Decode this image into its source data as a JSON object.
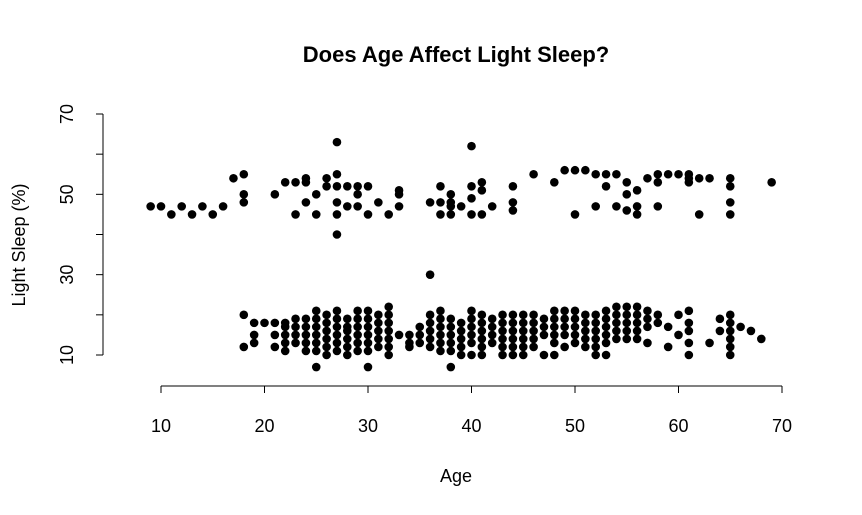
{
  "chart_data": {
    "type": "scatter",
    "title": "Does Age Affect Light Sleep?",
    "xlabel": "Age",
    "ylabel": "Light Sleep (%)",
    "xlim": [
      10,
      70
    ],
    "ylim": [
      10,
      70
    ],
    "xticks": [
      10,
      20,
      30,
      40,
      50,
      60,
      70
    ],
    "yticks_labeled": [
      10,
      30,
      50,
      70
    ],
    "yticks_all": [
      10,
      20,
      30,
      40,
      50,
      60,
      70
    ],
    "grid": false,
    "point_color": "#000000",
    "points": [
      [
        9,
        47
      ],
      [
        10,
        47
      ],
      [
        11,
        45
      ],
      [
        12,
        47
      ],
      [
        13,
        45
      ],
      [
        14,
        47
      ],
      [
        15,
        45
      ],
      [
        16,
        47
      ],
      [
        17,
        54
      ],
      [
        18,
        55
      ],
      [
        18,
        50
      ],
      [
        18,
        48
      ],
      [
        21,
        50
      ],
      [
        22,
        53
      ],
      [
        23,
        53
      ],
      [
        23,
        45
      ],
      [
        24,
        48
      ],
      [
        24,
        53
      ],
      [
        24,
        54
      ],
      [
        25,
        45
      ],
      [
        25,
        50
      ],
      [
        26,
        52
      ],
      [
        26,
        54
      ],
      [
        27,
        63
      ],
      [
        27,
        55
      ],
      [
        27,
        52
      ],
      [
        27,
        48
      ],
      [
        27,
        45
      ],
      [
        27,
        40
      ],
      [
        28,
        47
      ],
      [
        28,
        52
      ],
      [
        29,
        52
      ],
      [
        29,
        50
      ],
      [
        29,
        47
      ],
      [
        30,
        52
      ],
      [
        30,
        45
      ],
      [
        31,
        48
      ],
      [
        32,
        45
      ],
      [
        33,
        51
      ],
      [
        33,
        50
      ],
      [
        33,
        47
      ],
      [
        36,
        48
      ],
      [
        37,
        52
      ],
      [
        37,
        48
      ],
      [
        37,
        45
      ],
      [
        38,
        50
      ],
      [
        38,
        48
      ],
      [
        38,
        47
      ],
      [
        38,
        45
      ],
      [
        39,
        47
      ],
      [
        40,
        62
      ],
      [
        40,
        52
      ],
      [
        40,
        49
      ],
      [
        40,
        45
      ],
      [
        41,
        53
      ],
      [
        41,
        51
      ],
      [
        41,
        45
      ],
      [
        42,
        47
      ],
      [
        44,
        52
      ],
      [
        44,
        48
      ],
      [
        44,
        46
      ],
      [
        46,
        55
      ],
      [
        48,
        53
      ],
      [
        49,
        56
      ],
      [
        50,
        56
      ],
      [
        50,
        45
      ],
      [
        51,
        56
      ],
      [
        52,
        55
      ],
      [
        52,
        47
      ],
      [
        53,
        55
      ],
      [
        53,
        52
      ],
      [
        54,
        55
      ],
      [
        54,
        47
      ],
      [
        55,
        53
      ],
      [
        55,
        50
      ],
      [
        55,
        46
      ],
      [
        56,
        51
      ],
      [
        56,
        47
      ],
      [
        56,
        45
      ],
      [
        57,
        54
      ],
      [
        58,
        55
      ],
      [
        58,
        53
      ],
      [
        58,
        47
      ],
      [
        59,
        55
      ],
      [
        60,
        55
      ],
      [
        61,
        55
      ],
      [
        61,
        54
      ],
      [
        61,
        53
      ],
      [
        62,
        54
      ],
      [
        62,
        45
      ],
      [
        63,
        54
      ],
      [
        65,
        54
      ],
      [
        65,
        52
      ],
      [
        65,
        48
      ],
      [
        65,
        45
      ],
      [
        69,
        53
      ],
      [
        18,
        20
      ],
      [
        18,
        12
      ],
      [
        19,
        18
      ],
      [
        19,
        15
      ],
      [
        19,
        13
      ],
      [
        20,
        18
      ],
      [
        21,
        18
      ],
      [
        21,
        15
      ],
      [
        21,
        12
      ],
      [
        22,
        18
      ],
      [
        22,
        17
      ],
      [
        22,
        15
      ],
      [
        22,
        13
      ],
      [
        22,
        11
      ],
      [
        23,
        19
      ],
      [
        23,
        17
      ],
      [
        23,
        15
      ],
      [
        23,
        13
      ],
      [
        24,
        19
      ],
      [
        24,
        17
      ],
      [
        24,
        15
      ],
      [
        24,
        13
      ],
      [
        24,
        11
      ],
      [
        25,
        21
      ],
      [
        25,
        19
      ],
      [
        25,
        17
      ],
      [
        25,
        15
      ],
      [
        25,
        13
      ],
      [
        25,
        11
      ],
      [
        25,
        7
      ],
      [
        26,
        20
      ],
      [
        26,
        18
      ],
      [
        26,
        16
      ],
      [
        26,
        14
      ],
      [
        26,
        12
      ],
      [
        26,
        10
      ],
      [
        27,
        21
      ],
      [
        27,
        19
      ],
      [
        27,
        17
      ],
      [
        27,
        15
      ],
      [
        27,
        13
      ],
      [
        27,
        11
      ],
      [
        28,
        19
      ],
      [
        28,
        17
      ],
      [
        28,
        16
      ],
      [
        28,
        14
      ],
      [
        28,
        12
      ],
      [
        28,
        10
      ],
      [
        29,
        21
      ],
      [
        29,
        19
      ],
      [
        29,
        17
      ],
      [
        29,
        15
      ],
      [
        29,
        13
      ],
      [
        29,
        11
      ],
      [
        30,
        21
      ],
      [
        30,
        19
      ],
      [
        30,
        17
      ],
      [
        30,
        15
      ],
      [
        30,
        13
      ],
      [
        30,
        11
      ],
      [
        30,
        7
      ],
      [
        31,
        20
      ],
      [
        31,
        18
      ],
      [
        31,
        16
      ],
      [
        31,
        14
      ],
      [
        31,
        12
      ],
      [
        32,
        22
      ],
      [
        32,
        20
      ],
      [
        32,
        18
      ],
      [
        32,
        16
      ],
      [
        32,
        14
      ],
      [
        32,
        12
      ],
      [
        32,
        10
      ],
      [
        33,
        15
      ],
      [
        34,
        15
      ],
      [
        34,
        13
      ],
      [
        34,
        12
      ],
      [
        35,
        17
      ],
      [
        35,
        15
      ],
      [
        35,
        13
      ],
      [
        36,
        30
      ],
      [
        36,
        20
      ],
      [
        36,
        18
      ],
      [
        36,
        16
      ],
      [
        36,
        14
      ],
      [
        36,
        12
      ],
      [
        37,
        21
      ],
      [
        37,
        19
      ],
      [
        37,
        17
      ],
      [
        37,
        15
      ],
      [
        37,
        13
      ],
      [
        37,
        11
      ],
      [
        38,
        19
      ],
      [
        38,
        17
      ],
      [
        38,
        15
      ],
      [
        38,
        13
      ],
      [
        38,
        11
      ],
      [
        38,
        7
      ],
      [
        39,
        18
      ],
      [
        39,
        16
      ],
      [
        39,
        14
      ],
      [
        39,
        12
      ],
      [
        39,
        10
      ],
      [
        40,
        21
      ],
      [
        40,
        19
      ],
      [
        40,
        17
      ],
      [
        40,
        15
      ],
      [
        40,
        13
      ],
      [
        40,
        10
      ],
      [
        41,
        20
      ],
      [
        41,
        18
      ],
      [
        41,
        16
      ],
      [
        41,
        14
      ],
      [
        41,
        12
      ],
      [
        41,
        10
      ],
      [
        42,
        19
      ],
      [
        42,
        17
      ],
      [
        42,
        15
      ],
      [
        42,
        13
      ],
      [
        43,
        20
      ],
      [
        43,
        18
      ],
      [
        43,
        16
      ],
      [
        43,
        14
      ],
      [
        43,
        12
      ],
      [
        43,
        10
      ],
      [
        44,
        20
      ],
      [
        44,
        18
      ],
      [
        44,
        16
      ],
      [
        44,
        14
      ],
      [
        44,
        12
      ],
      [
        44,
        10
      ],
      [
        45,
        20
      ],
      [
        45,
        18
      ],
      [
        45,
        16
      ],
      [
        45,
        14
      ],
      [
        45,
        12
      ],
      [
        45,
        10
      ],
      [
        46,
        20
      ],
      [
        46,
        18
      ],
      [
        46,
        16
      ],
      [
        46,
        14
      ],
      [
        46,
        12
      ],
      [
        47,
        19
      ],
      [
        47,
        17
      ],
      [
        47,
        15
      ],
      [
        47,
        10
      ],
      [
        48,
        21
      ],
      [
        48,
        19
      ],
      [
        48,
        17
      ],
      [
        48,
        15
      ],
      [
        48,
        13
      ],
      [
        48,
        10
      ],
      [
        49,
        21
      ],
      [
        49,
        19
      ],
      [
        49,
        17
      ],
      [
        49,
        15
      ],
      [
        49,
        12
      ],
      [
        50,
        21
      ],
      [
        50,
        19
      ],
      [
        50,
        17
      ],
      [
        50,
        15
      ],
      [
        50,
        13
      ],
      [
        51,
        20
      ],
      [
        51,
        18
      ],
      [
        51,
        16
      ],
      [
        51,
        14
      ],
      [
        51,
        12
      ],
      [
        52,
        20
      ],
      [
        52,
        18
      ],
      [
        52,
        16
      ],
      [
        52,
        14
      ],
      [
        52,
        12
      ],
      [
        52,
        10
      ],
      [
        53,
        21
      ],
      [
        53,
        19
      ],
      [
        53,
        17
      ],
      [
        53,
        15
      ],
      [
        53,
        13
      ],
      [
        53,
        10
      ],
      [
        54,
        22
      ],
      [
        54,
        20
      ],
      [
        54,
        18
      ],
      [
        54,
        16
      ],
      [
        54,
        14
      ],
      [
        55,
        22
      ],
      [
        55,
        20
      ],
      [
        55,
        18
      ],
      [
        55,
        16
      ],
      [
        55,
        14
      ],
      [
        56,
        22
      ],
      [
        56,
        20
      ],
      [
        56,
        18
      ],
      [
        56,
        16
      ],
      [
        56,
        14
      ],
      [
        57,
        21
      ],
      [
        57,
        19
      ],
      [
        57,
        17
      ],
      [
        57,
        13
      ],
      [
        58,
        20
      ],
      [
        58,
        18
      ],
      [
        59,
        17
      ],
      [
        59,
        12
      ],
      [
        60,
        20
      ],
      [
        60,
        15
      ],
      [
        61,
        21
      ],
      [
        61,
        18
      ],
      [
        61,
        16
      ],
      [
        61,
        13
      ],
      [
        61,
        10
      ],
      [
        63,
        13
      ],
      [
        64,
        19
      ],
      [
        64,
        16
      ],
      [
        65,
        20
      ],
      [
        65,
        18
      ],
      [
        65,
        16
      ],
      [
        65,
        14
      ],
      [
        65,
        12
      ],
      [
        65,
        10
      ],
      [
        66,
        17
      ],
      [
        67,
        16
      ],
      [
        68,
        14
      ]
    ]
  }
}
